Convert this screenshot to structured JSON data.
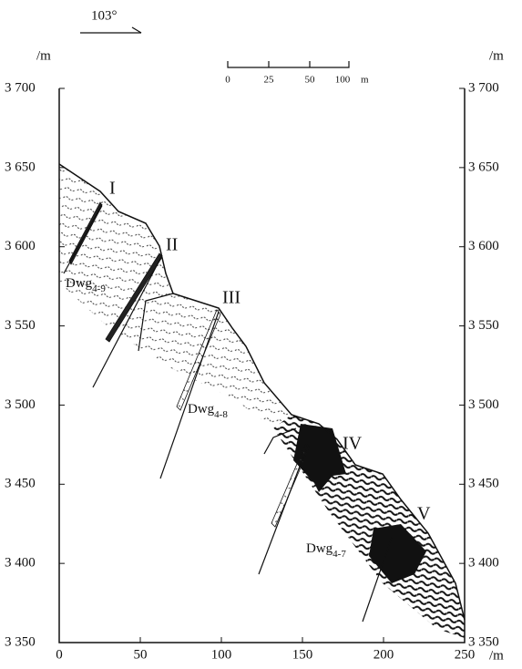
{
  "orientation": "103°",
  "scale_bar": {
    "ticks": [
      0,
      25,
      50,
      100
    ],
    "unit": "m"
  },
  "axes": {
    "left_unit": "/m",
    "right_unit": "/m",
    "bottom_unit": "/m",
    "ylim": [
      3350,
      3700
    ],
    "xlim": [
      0,
      250
    ],
    "yticks": [
      {
        "value": 3700,
        "label": "3 700"
      },
      {
        "value": 3650,
        "label": "3 650"
      },
      {
        "value": 3600,
        "label": "3 600"
      },
      {
        "value": 3550,
        "label": "3 550"
      },
      {
        "value": 3500,
        "label": "3 500"
      },
      {
        "value": 3450,
        "label": "3 450"
      },
      {
        "value": 3400,
        "label": "3 400"
      },
      {
        "value": 3350,
        "label": "3 350"
      }
    ],
    "xticks": [
      0,
      50,
      100,
      150,
      200,
      250
    ]
  },
  "ore_bodies": [
    "I",
    "II",
    "III",
    "IV",
    "V"
  ],
  "units": [
    {
      "code": "Dwg",
      "sub": "4-9"
    },
    {
      "code": "Dwg",
      "sub": "4-8"
    },
    {
      "code": "Dwg",
      "sub": "4-7"
    }
  ]
}
